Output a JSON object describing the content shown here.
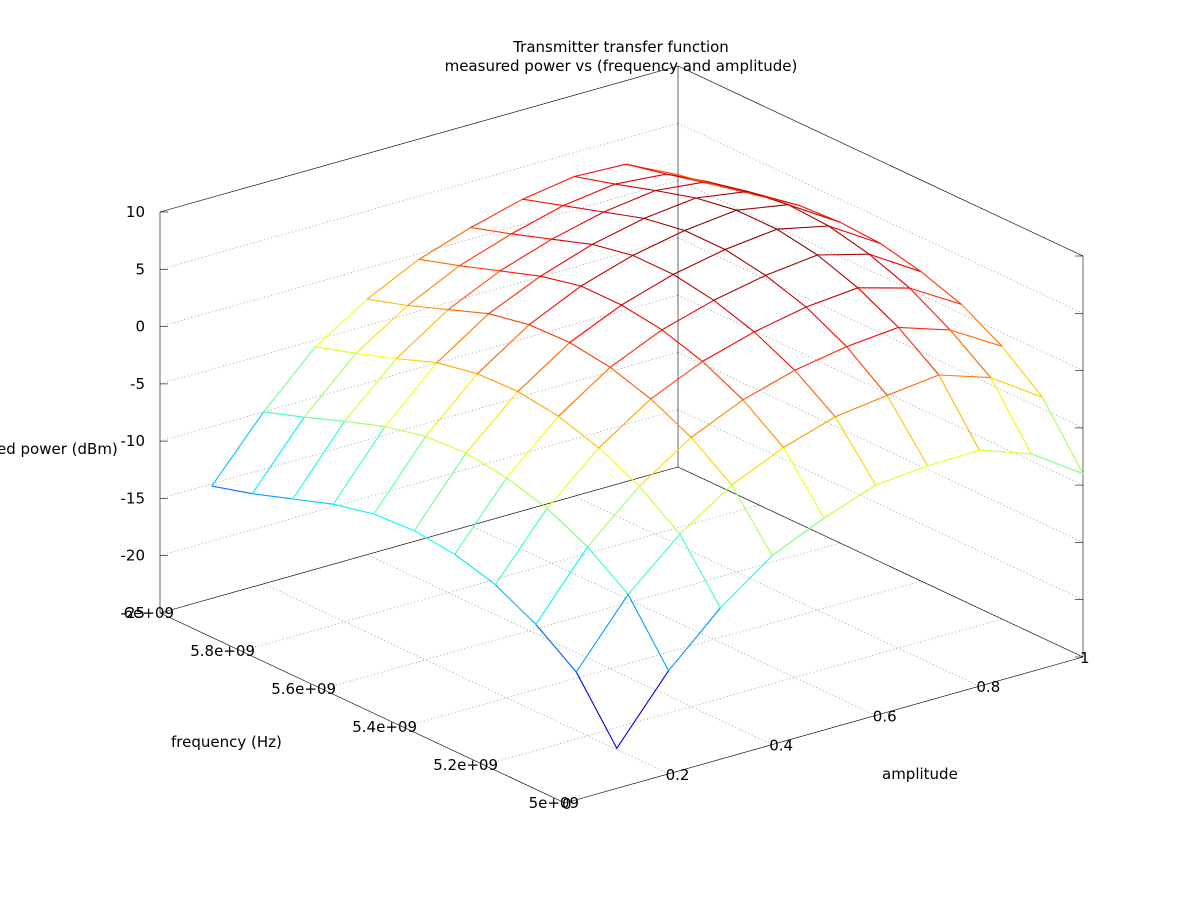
{
  "chart_data": {
    "type": "surface",
    "title": "Transmitter transfer function",
    "subtitle": "measured power vs (frequency and amplitude)",
    "xlabel": "amplitude",
    "ylabel": "frequency (Hz)",
    "zlabel": "ed power (dBm)",
    "xlim": [
      0,
      1
    ],
    "ylim": [
      5000000000,
      6000000000
    ],
    "zlim": [
      -25,
      10
    ],
    "xticks": [
      0,
      0.2,
      0.4,
      0.6,
      0.8,
      1
    ],
    "xtick_labels": [
      "0",
      "0.2",
      "0.4",
      "0.6",
      "0.8",
      "1"
    ],
    "yticks": [
      5000000000,
      5200000000,
      5400000000,
      5600000000,
      5800000000,
      6000000000
    ],
    "ytick_labels": [
      "5e+09",
      "5.2e+09",
      "5.4e+09",
      "5.6e+09",
      "5.8e+09",
      "6e+09"
    ],
    "zticks": [
      -25,
      -20,
      -15,
      -10,
      -5,
      0,
      5,
      10
    ],
    "ztick_labels": [
      "-25",
      "-20",
      "-15",
      "-10",
      "-5",
      "0",
      "5",
      "10"
    ],
    "grid": true,
    "colormap": "jet",
    "colormap_colors": [
      "#00008f",
      "#0000ff",
      "#00ffff",
      "#ffff00",
      "#ff0000",
      "#800000"
    ],
    "amplitude": [
      0.1,
      0.2,
      0.3,
      0.4,
      0.5,
      0.6,
      0.7,
      0.8,
      0.9,
      1.0
    ],
    "frequency": [
      5000000000,
      5100000000,
      5200000000,
      5300000000,
      5400000000,
      5500000000,
      5600000000,
      5700000000,
      5800000000,
      5900000000,
      6000000000
    ],
    "power": [
      [
        -21.5,
        -16.0,
        -11.8,
        -8.5,
        -6.5,
        -4.9,
        -4.5,
        -4.4,
        -6.0,
        -9.0
      ],
      [
        -16.5,
        -11.0,
        -7.0,
        -4.0,
        -2.0,
        -0.6,
        0.0,
        0.5,
        -1.0,
        -4.0
      ],
      [
        -14.0,
        -8.5,
        -4.5,
        -1.5,
        0.5,
        1.8,
        2.6,
        3.0,
        1.5,
        -1.2
      ],
      [
        -12.2,
        -6.8,
        -2.8,
        0.2,
        2.2,
        3.5,
        4.4,
        4.8,
        3.5,
        0.8
      ],
      [
        -11.2,
        -5.8,
        -1.7,
        1.3,
        3.3,
        4.6,
        5.5,
        6.0,
        4.8,
        2.0
      ],
      [
        -10.8,
        -5.3,
        -1.2,
        1.8,
        3.8,
        5.2,
        6.1,
        6.6,
        5.6,
        2.8
      ],
      [
        -11.0,
        -5.5,
        -1.3,
        1.7,
        3.8,
        5.2,
        6.1,
        6.6,
        5.8,
        3.0
      ],
      [
        -11.8,
        -6.3,
        -2.0,
        1.0,
        3.0,
        4.5,
        5.5,
        6.0,
        5.3,
        2.8
      ],
      [
        -13.0,
        -7.5,
        -3.3,
        -0.3,
        1.8,
        3.3,
        4.4,
        5.0,
        4.5,
        2.0
      ],
      [
        -14.2,
        -8.8,
        -4.5,
        -1.6,
        0.6,
        2.1,
        3.3,
        3.9,
        3.5,
        1.2
      ],
      [
        -15.2,
        -10.0,
        -5.6,
        -2.7,
        -0.5,
        1.0,
        2.2,
        2.9,
        2.7,
        0.5
      ]
    ]
  }
}
